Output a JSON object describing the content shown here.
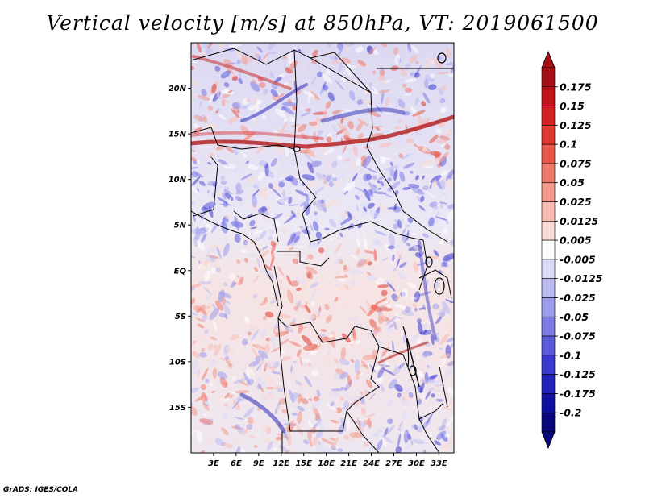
{
  "title": "Vertical velocity [m/s] at 850hPa, VT: 2019061500",
  "footer": "GrADS: IGES/COLA",
  "map": {
    "variable": "vertical velocity",
    "level": "850hPa",
    "lon_range": [
      0,
      35
    ],
    "lat_range": [
      -20,
      25
    ],
    "lon_ticks": [
      {
        "value": 3,
        "label": "3E"
      },
      {
        "value": 6,
        "label": "6E"
      },
      {
        "value": 9,
        "label": "9E"
      },
      {
        "value": 12,
        "label": "12E"
      },
      {
        "value": 15,
        "label": "15E"
      },
      {
        "value": 18,
        "label": "18E"
      },
      {
        "value": 21,
        "label": "21E"
      },
      {
        "value": 24,
        "label": "24E"
      },
      {
        "value": 27,
        "label": "27E"
      },
      {
        "value": 30,
        "label": "30E"
      },
      {
        "value": 33,
        "label": "33E"
      }
    ],
    "lat_ticks": [
      {
        "value": 20,
        "label": "20N"
      },
      {
        "value": 15,
        "label": "15N"
      },
      {
        "value": 10,
        "label": "10N"
      },
      {
        "value": 5,
        "label": "5N"
      },
      {
        "value": 0,
        "label": "EQ"
      },
      {
        "value": -5,
        "label": "5S"
      },
      {
        "value": -10,
        "label": "10S"
      },
      {
        "value": -15,
        "label": "15S"
      }
    ]
  },
  "colorbar": {
    "labels": [
      "0.175",
      "0.15",
      "0.125",
      "0.1",
      "0.075",
      "0.05",
      "0.025",
      "0.0125",
      "0.005",
      "-0.005",
      "-0.0125",
      "-0.025",
      "-0.05",
      "-0.075",
      "-0.1",
      "-0.125",
      "-0.175",
      "-0.2"
    ],
    "colors": [
      "#a50f15",
      "#c0141a",
      "#d32020",
      "#e03a30",
      "#e85848",
      "#ee7a6a",
      "#f39a8c",
      "#f8bcb2",
      "#fcdcd6",
      "#ffffff",
      "#dcdcf8",
      "#bcbcf2",
      "#9c9cec",
      "#7c7ce4",
      "#5a5ada",
      "#3a3ad0",
      "#2222bc",
      "#1010a0",
      "#08087a"
    ]
  }
}
